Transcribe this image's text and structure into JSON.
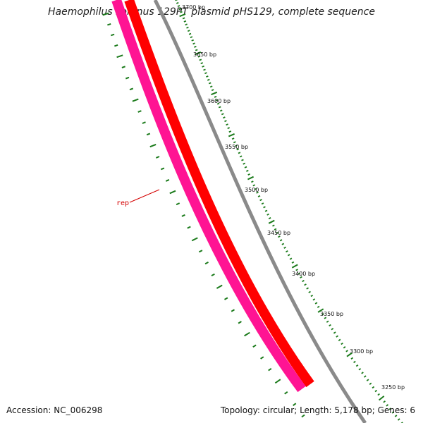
{
  "title": "Haemophilus somnus 129PT plasmid pHS129, complete sequence",
  "accession": "Accession: NC_006298",
  "summary": "Topology: circular; Length: 5,178 bp; Genes: 6",
  "colors": {
    "backbone": "#8a8a8a",
    "gene_forward": "#ff0000",
    "gene_reverse": "#ff1493",
    "ticks": "#1a7a1a",
    "gene_label": "#d40000"
  },
  "features": [
    {
      "name": "rep",
      "strand": "reverse",
      "color": "#ff1493"
    }
  ],
  "scale": {
    "labels": [
      "3700 bp",
      "3650 bp",
      "3600 bp",
      "3550 bp",
      "3500 bp",
      "3450 bp",
      "3400 bp",
      "3350 bp",
      "3300 bp",
      "3250 bp"
    ]
  }
}
